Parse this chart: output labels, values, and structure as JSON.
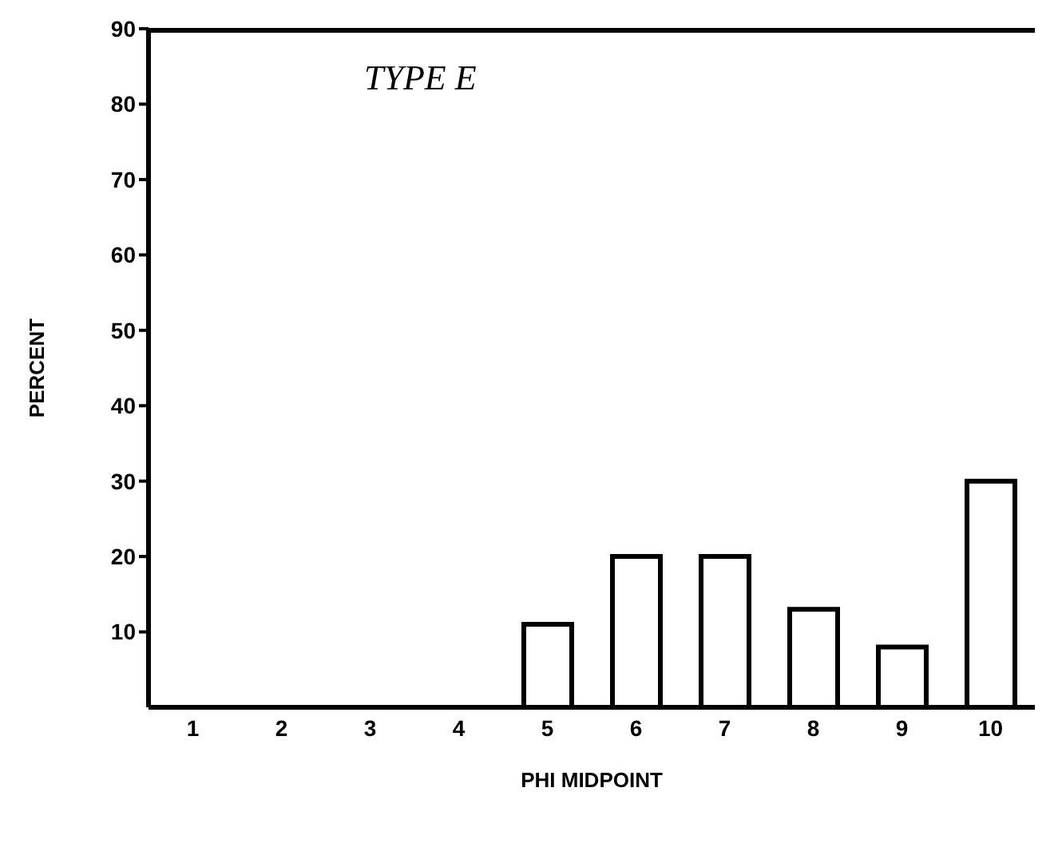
{
  "chart_data": {
    "type": "bar",
    "title": "TYPE E",
    "xlabel": "PHI MIDPOINT",
    "ylabel": "PERCENT",
    "categories": [
      "1",
      "2",
      "3",
      "4",
      "5",
      "6",
      "7",
      "8",
      "9",
      "10"
    ],
    "values": [
      0,
      0,
      0,
      0,
      11,
      20,
      20,
      13,
      8,
      30
    ],
    "color": "#ffffff",
    "ylim": [
      0,
      90
    ],
    "yticks": [
      10,
      20,
      30,
      40,
      50,
      60,
      70,
      80,
      90
    ],
    "grid": false
  }
}
